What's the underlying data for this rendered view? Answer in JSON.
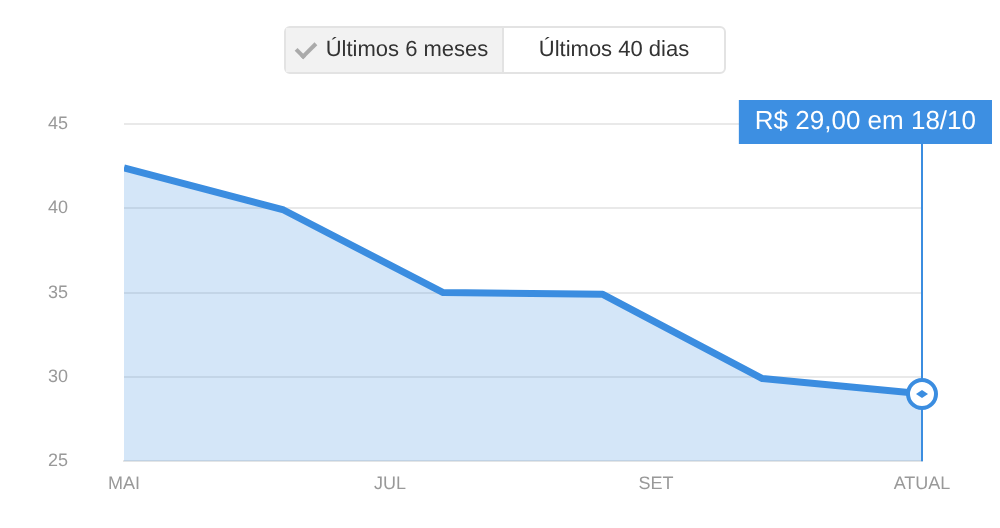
{
  "chart_data": {
    "type": "area",
    "categories": [
      "MAI",
      null,
      null,
      null,
      null,
      "JUL",
      null,
      null,
      null,
      null,
      "SET",
      null,
      null,
      null,
      null,
      "ATUAL"
    ],
    "series": [
      {
        "color": "#3b8de0",
        "values": [
          42.4,
          null,
          null,
          39.9,
          null,
          null,
          35,
          null,
          null,
          34.9,
          null,
          null,
          29.9,
          null,
          null,
          29
        ]
      }
    ],
    "ylim": [
      25,
      45
    ],
    "yticks": [
      25,
      30,
      35,
      40,
      45
    ],
    "grid": "y",
    "legend": false,
    "marker": "none",
    "annotations": [
      "Últimos 6 meses",
      "Últimos 40 dias",
      "R$ 29,00 em 18/10"
    ]
  }
}
